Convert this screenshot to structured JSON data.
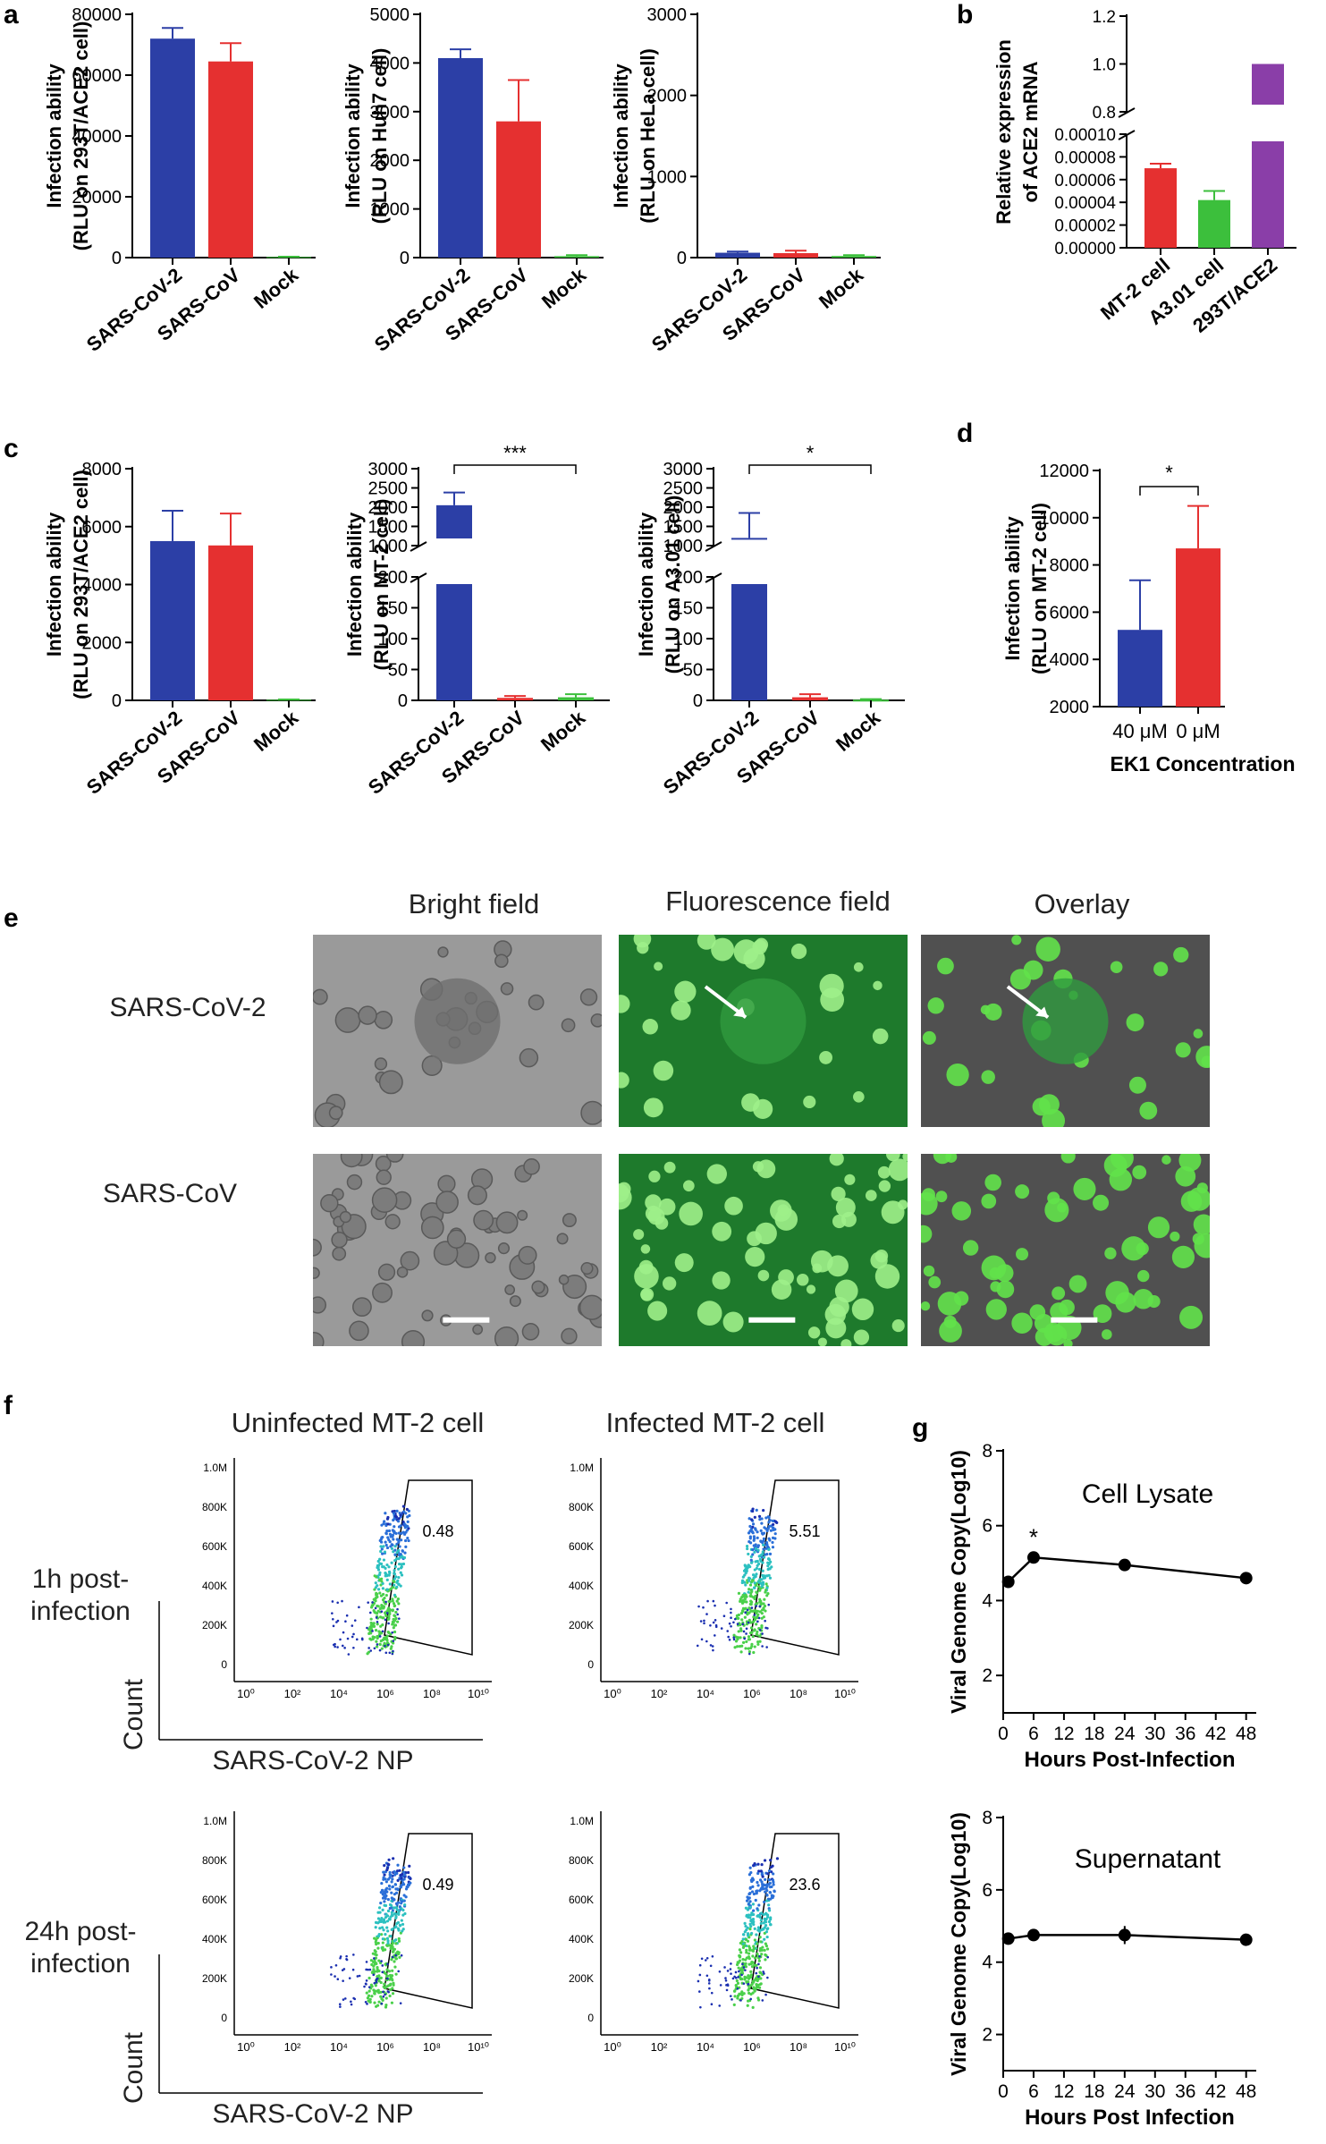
{
  "panels": {
    "a": "a",
    "b": "b",
    "c": "c",
    "d": "d",
    "e": "e",
    "f": "f",
    "g": "g"
  },
  "colors": {
    "blue": "#2c3fa6",
    "red": "#e53030",
    "green": "#3cbf3c",
    "purple": "#8a3ea8",
    "black": "#1a1a1a"
  },
  "micrographs": {
    "col_titles": [
      "Bright field",
      "Fluorescence field",
      "Overlay"
    ],
    "row_labels": [
      "SARS-CoV-2",
      "SARS-CoV"
    ]
  },
  "flow": {
    "col_titles": [
      "Uninfected MT-2 cell",
      "Infected MT-2 cell"
    ],
    "row_labels": [
      "1h post-\ninfection",
      "24h post-\ninfection"
    ],
    "row_label_lines": [
      [
        "1h post-",
        "infection"
      ],
      [
        "24h post-",
        "infection"
      ]
    ],
    "y_ticks": [
      "1.0M",
      "800K",
      "600K",
      "400K",
      "200K",
      "0"
    ],
    "x_ticks": [
      "10⁰",
      "10²",
      "10⁴",
      "10⁶",
      "10⁸",
      "10¹⁰"
    ],
    "xlabel": "SARS-CoV-2 NP",
    "ylabel": "Count",
    "gate_values": [
      [
        "0.48",
        "5.51"
      ],
      [
        "0.49",
        "23.6"
      ]
    ]
  },
  "chart_data": [
    {
      "panel": "a",
      "type": "bar",
      "categories": [
        "SARS-CoV-2",
        "SARS-CoV",
        "Mock"
      ],
      "values": [
        72000,
        64500,
        200
      ],
      "errors": [
        3500,
        6000,
        100
      ],
      "colors": [
        "#2c3fa6",
        "#e53030",
        "#3cbf3c"
      ],
      "ylabel": [
        "Infection ability",
        "(RLU on 293T/ACE2 cell)"
      ],
      "ylim": [
        0,
        80000
      ],
      "yticks": [
        0,
        20000,
        40000,
        60000,
        80000
      ]
    },
    {
      "panel": "a",
      "type": "bar",
      "categories": [
        "SARS-CoV-2",
        "SARS-CoV",
        "Mock"
      ],
      "values": [
        4100,
        2800,
        30
      ],
      "errors": [
        180,
        850,
        20
      ],
      "colors": [
        "#2c3fa6",
        "#e53030",
        "#3cbf3c"
      ],
      "ylabel": [
        "Infection ability",
        "(RLU on Huh7 cell)"
      ],
      "ylim": [
        0,
        5000
      ],
      "yticks": [
        0,
        1000,
        2000,
        3000,
        4000,
        5000
      ]
    },
    {
      "panel": "a",
      "type": "bar",
      "categories": [
        "SARS-CoV-2",
        "SARS-CoV",
        "Mock"
      ],
      "values": [
        60,
        55,
        20
      ],
      "errors": [
        15,
        30,
        10
      ],
      "colors": [
        "#2c3fa6",
        "#e53030",
        "#3cbf3c"
      ],
      "ylabel": [
        "Infection ability",
        "(RLU on HeLa cell)"
      ],
      "ylim": [
        0,
        3000
      ],
      "yticks": [
        0,
        1000,
        2000,
        3000
      ]
    },
    {
      "panel": "b",
      "type": "bar",
      "categories": [
        "MT-2 cell",
        "A3.01 cell",
        "293T/ACE2"
      ],
      "values": [
        7e-05,
        4.2e-05,
        1.0
      ],
      "errors": [
        4e-06,
        8e-06,
        0
      ],
      "colors": [
        "#e53030",
        "#3cbf3c",
        "#8a3ea8"
      ],
      "ylabel": [
        "Relative expression",
        "of ACE2 mRNA"
      ],
      "broken_axis": true,
      "lower_ticks": [
        "0.00000",
        "0.00002",
        "0.00004",
        "0.00006",
        "0.00008",
        "0.00010"
      ],
      "upper_ticks": [
        "0.8",
        "1.0",
        "1.2"
      ]
    },
    {
      "panel": "c",
      "type": "bar",
      "categories": [
        "SARS-CoV-2",
        "SARS-CoV",
        "Mock"
      ],
      "values": [
        5500,
        5350,
        20
      ],
      "errors": [
        1050,
        1100,
        10
      ],
      "colors": [
        "#2c3fa6",
        "#e53030",
        "#3cbf3c"
      ],
      "ylabel": [
        "Infection ability",
        "(RLU on 293T/ACE2 cell)"
      ],
      "ylim": [
        0,
        8000
      ],
      "yticks": [
        0,
        2000,
        4000,
        6000,
        8000
      ]
    },
    {
      "panel": "c",
      "type": "bar",
      "categories": [
        "SARS-CoV-2",
        "SARS-CoV",
        "Mock"
      ],
      "values": [
        2050,
        4,
        5
      ],
      "errors": [
        330,
        3,
        5
      ],
      "colors": [
        "#2c3fa6",
        "#e53030",
        "#3cbf3c"
      ],
      "ylabel": [
        "Infection ability",
        "(RLU on MT-2 cell)"
      ],
      "broken_axis": true,
      "lower_ticks": [
        "0",
        "50",
        "100",
        "150",
        "200"
      ],
      "upper_ticks": [
        "1000",
        "1500",
        "2000",
        "2500",
        "3000"
      ],
      "significance": "***"
    },
    {
      "panel": "c",
      "type": "bar",
      "categories": [
        "SARS-CoV-2",
        "SARS-CoV",
        "Mock"
      ],
      "values": [
        1200,
        5,
        1
      ],
      "errors": [
        650,
        5,
        1
      ],
      "colors": [
        "#2c3fa6",
        "#e53030",
        "#3cbf3c"
      ],
      "ylabel": [
        "Infection ability",
        "(RLU on A3.01 cell)"
      ],
      "broken_axis": true,
      "lower_ticks": [
        "0",
        "50",
        "100",
        "150",
        "200"
      ],
      "upper_ticks": [
        "1000",
        "1500",
        "2000",
        "2500",
        "3000"
      ],
      "significance": "*"
    },
    {
      "panel": "d",
      "type": "bar",
      "categories": [
        "40 μM",
        "0 μM"
      ],
      "values": [
        5250,
        8700
      ],
      "errors": [
        2100,
        1800
      ],
      "colors": [
        "#2c3fa6",
        "#e53030"
      ],
      "ylabel": [
        "Infection ability",
        "(RLU on MT-2 cell)"
      ],
      "xlabel": "EK1 Concentration",
      "ylim": [
        2000,
        12000
      ],
      "yticks": [
        2000,
        4000,
        6000,
        8000,
        10000,
        12000
      ],
      "significance": "*"
    },
    {
      "panel": "g",
      "type": "line",
      "title": "Cell Lysate",
      "x": [
        1,
        6,
        24,
        48
      ],
      "y": [
        4.5,
        5.15,
        4.95,
        4.6
      ],
      "errors": [
        0,
        0,
        0,
        0
      ],
      "xlabel": "Hours Post-Infection",
      "ylabel": "Viral Genome Copy(Log10)",
      "xlim": [
        0,
        50
      ],
      "xticks": [
        0,
        6,
        12,
        18,
        24,
        30,
        36,
        42,
        48
      ],
      "ylim": [
        1,
        8
      ],
      "yticks": [
        2,
        4,
        6,
        8
      ],
      "significance": "*"
    },
    {
      "panel": "g",
      "type": "line",
      "title": "Supernatant",
      "x": [
        1,
        6,
        24,
        48
      ],
      "y": [
        4.65,
        4.75,
        4.75,
        4.62
      ],
      "errors": [
        0,
        0,
        0.25,
        0
      ],
      "xlabel": "Hours Post Infection",
      "ylabel": "Viral Genome Copy(Log10)",
      "xlim": [
        0,
        50
      ],
      "xticks": [
        0,
        6,
        12,
        18,
        24,
        30,
        36,
        42,
        48
      ],
      "ylim": [
        1,
        8
      ],
      "yticks": [
        2,
        4,
        6,
        8
      ]
    }
  ]
}
